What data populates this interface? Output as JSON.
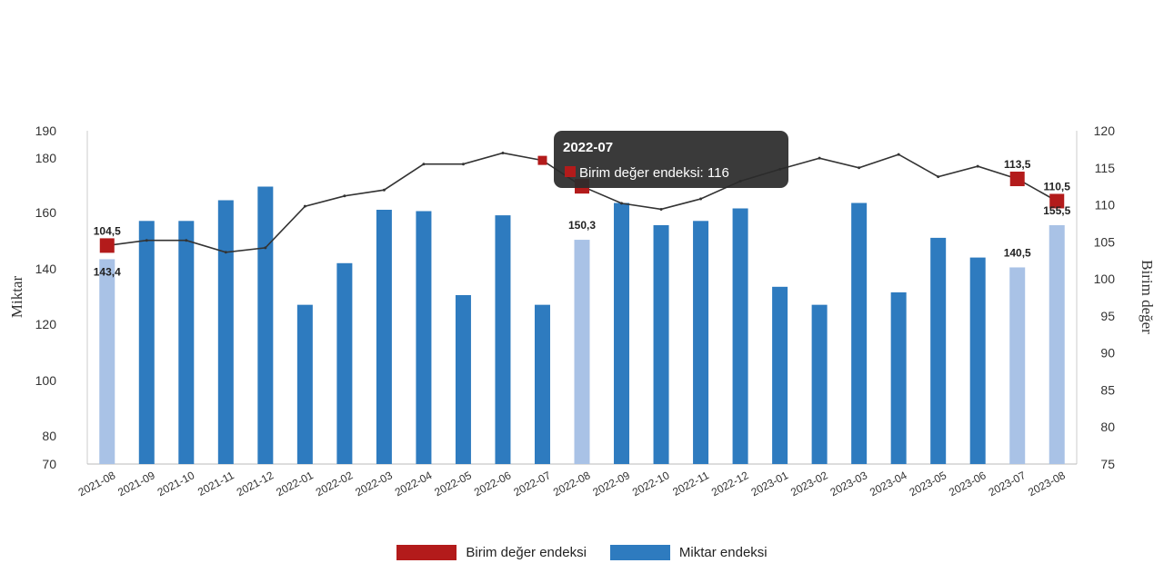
{
  "chart_data": {
    "type": "bar",
    "categories": [
      "2021-08",
      "2021-09",
      "2021-10",
      "2021-11",
      "2021-12",
      "2022-01",
      "2022-02",
      "2022-03",
      "2022-04",
      "2022-05",
      "2022-06",
      "2022-07",
      "2022-08",
      "2022-09",
      "2022-10",
      "2022-11",
      "2022-12",
      "2023-01",
      "2023-02",
      "2023-03",
      "2023-04",
      "2023-05",
      "2023-06",
      "2023-07",
      "2023-08"
    ],
    "series": [
      {
        "name": "Miktar endeksi",
        "axis": "left",
        "type": "bar",
        "color": "#2e7bbf",
        "highlight_color": "#a9c2e6",
        "highlighted": [
          0,
          12,
          23,
          24
        ],
        "values": [
          143.4,
          157,
          157,
          164.5,
          169.5,
          127,
          142,
          161,
          160.5,
          130.5,
          159,
          127,
          150.3,
          163.5,
          155.5,
          157,
          161.5,
          133.5,
          127,
          163.5,
          131.5,
          151,
          144,
          140.5,
          155.5
        ]
      },
      {
        "name": "Birim değer endeksi",
        "axis": "right",
        "type": "line",
        "color": "#333333",
        "marker_color": "#b31b1b",
        "markers": [
          0,
          12,
          23,
          24
        ],
        "values": [
          104.5,
          105.2,
          105.2,
          103.6,
          104.2,
          109.8,
          111.2,
          112,
          115.5,
          115.5,
          117,
          116,
          112.5,
          110.2,
          109.4,
          110.8,
          113.2,
          114.8,
          116.3,
          115,
          116.8,
          113.8,
          115.2,
          113.5,
          110.5
        ]
      }
    ],
    "data_labels": [
      {
        "series": 1,
        "index": 0,
        "text": "104,5",
        "pos": "above"
      },
      {
        "series": 0,
        "index": 0,
        "text": "143,4",
        "pos": "below"
      },
      {
        "series": 0,
        "index": 12,
        "text": "150,3",
        "pos": "above"
      },
      {
        "series": 1,
        "index": 23,
        "text": "113,5",
        "pos": "above"
      },
      {
        "series": 0,
        "index": 23,
        "text": "140,5",
        "pos": "above"
      },
      {
        "series": 1,
        "index": 24,
        "text": "110,5",
        "pos": "above"
      },
      {
        "series": 0,
        "index": 24,
        "text": "155,5",
        "pos": "above"
      }
    ],
    "yleft": {
      "label": "Miktar",
      "ticks": [
        70,
        80,
        100,
        120,
        140,
        160,
        180,
        190
      ],
      "range": [
        70,
        190
      ]
    },
    "yright": {
      "label": "Birim değer",
      "ticks": [
        75,
        80,
        85,
        90,
        95,
        100,
        105,
        110,
        115,
        120
      ],
      "range": [
        75,
        120
      ]
    },
    "grid": false,
    "legend_position": "bottom",
    "tooltip": {
      "title": "2022-07",
      "series_index": 1,
      "index": 11,
      "text": "Birim değer endeksi: 116"
    }
  }
}
